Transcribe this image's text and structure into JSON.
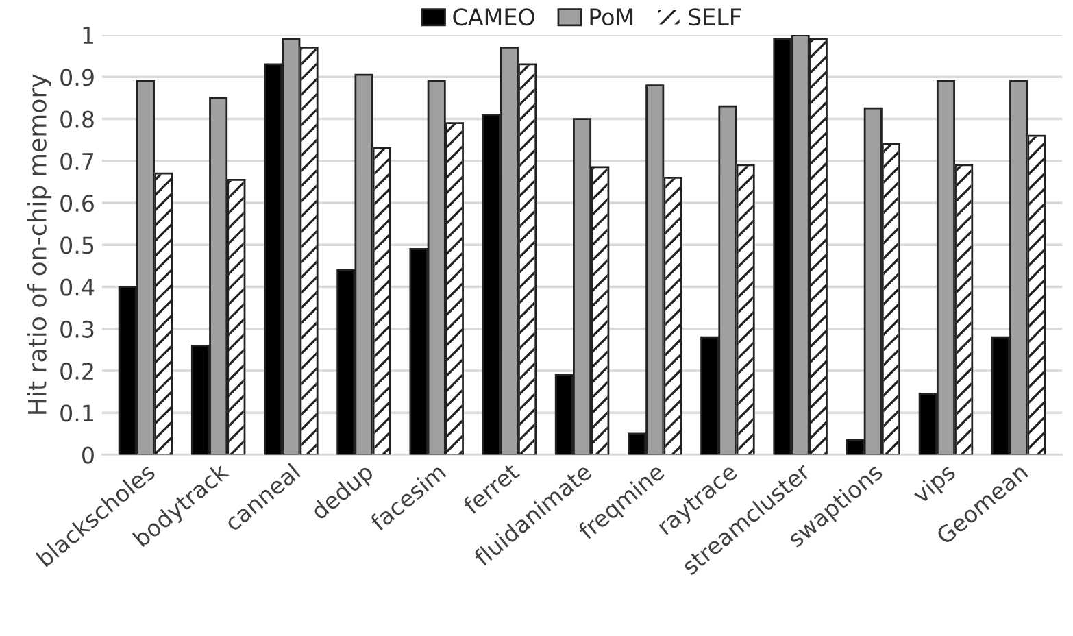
{
  "chart_data": {
    "type": "bar",
    "ylabel": "Hit ratio of on-chip memory",
    "categories": [
      "blackscholes",
      "bodytrack",
      "canneal",
      "dedup",
      "facesim",
      "ferret",
      "fluidanimate",
      "freqmine",
      "raytrace",
      "streamcluster",
      "swaptions",
      "vips",
      "Geomean"
    ],
    "series": [
      {
        "name": "CAMEO",
        "color": "#000000",
        "values": [
          0.4,
          0.26,
          0.93,
          0.44,
          0.49,
          0.81,
          0.19,
          0.05,
          0.28,
          0.99,
          0.035,
          0.145,
          0.28
        ]
      },
      {
        "name": "PoM",
        "color": "#a0a0a0",
        "values": [
          0.89,
          0.85,
          0.99,
          0.905,
          0.89,
          0.97,
          0.8,
          0.88,
          0.83,
          1.0,
          0.825,
          0.89,
          0.89
        ]
      },
      {
        "name": "SELF",
        "color": "#ffffff",
        "values": [
          0.67,
          0.655,
          0.97,
          0.73,
          0.79,
          0.93,
          0.685,
          0.66,
          0.69,
          0.99,
          0.74,
          0.69,
          0.76
        ]
      }
    ],
    "ylim": [
      0,
      1
    ],
    "yticks": [
      0,
      0.1,
      0.2,
      0.3,
      0.4,
      0.5,
      0.6,
      0.7,
      0.8,
      0.9,
      1
    ],
    "grid": "y",
    "legend": "top"
  }
}
